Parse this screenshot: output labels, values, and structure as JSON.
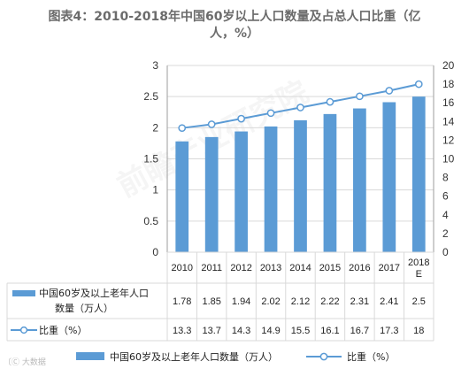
{
  "title_line1": "图表4：2010-2018年中国60岁以上人口数量及占总人口比重（亿",
  "title_line2": "人，%）",
  "watermark": "前瞻产业研究院",
  "footer": "〔Ⓒ 大数据",
  "colors": {
    "bar": "#5b9bd5",
    "line": "#5b9bd5",
    "grid": "#d9d9d9",
    "axis": "#9e9e9e"
  },
  "chart_data": {
    "type": "bar",
    "categories": [
      "2010",
      "2011",
      "2012",
      "2013",
      "2014",
      "2015",
      "2016",
      "2017",
      "2018E"
    ],
    "category_labels": [
      [
        "2010"
      ],
      [
        "2011"
      ],
      [
        "2012"
      ],
      [
        "2013"
      ],
      [
        "2014"
      ],
      [
        "2015"
      ],
      [
        "2016"
      ],
      [
        "2017"
      ],
      [
        "2018",
        "E"
      ]
    ],
    "series": [
      {
        "name": "中国60岁及以上老年人口数量（万人）",
        "type": "bar",
        "axis": "left",
        "values": [
          1.78,
          1.85,
          1.94,
          2.02,
          2.12,
          2.22,
          2.31,
          2.41,
          2.5
        ]
      },
      {
        "name": "比重（%）",
        "type": "line",
        "axis": "right",
        "values": [
          13.3,
          13.7,
          14.3,
          14.9,
          15.5,
          16.1,
          16.7,
          17.3,
          18
        ]
      }
    ],
    "y_left": {
      "min": 0,
      "max": 3,
      "ticks": [
        "0",
        "0.5",
        "1",
        "1.5",
        "2",
        "2.5",
        "3"
      ]
    },
    "y_right": {
      "min": 0,
      "max": 20,
      "ticks": [
        "0",
        "2",
        "4",
        "6",
        "8",
        "10",
        "12",
        "14",
        "16",
        "18",
        "20"
      ]
    },
    "table_rows": [
      {
        "label": "中国60岁及以上老年人口数量（万人）",
        "label_lines": [
          "中国60岁及以上老年人口",
          "数量（万人）"
        ],
        "values": [
          "1.78",
          "1.85",
          "1.94",
          "2.02",
          "2.12",
          "2.22",
          "2.31",
          "2.41",
          "2.5"
        ]
      },
      {
        "label": "比重（%）",
        "label_lines": [
          "比重（%）"
        ],
        "values": [
          "13.3",
          "13.7",
          "14.3",
          "14.9",
          "15.5",
          "16.1",
          "16.7",
          "17.3",
          "18"
        ]
      }
    ],
    "legend": [
      "中国60岁及以上老年人口数量（万人）",
      "比重（%）"
    ],
    "legend_position": "bottom",
    "grid": true
  }
}
